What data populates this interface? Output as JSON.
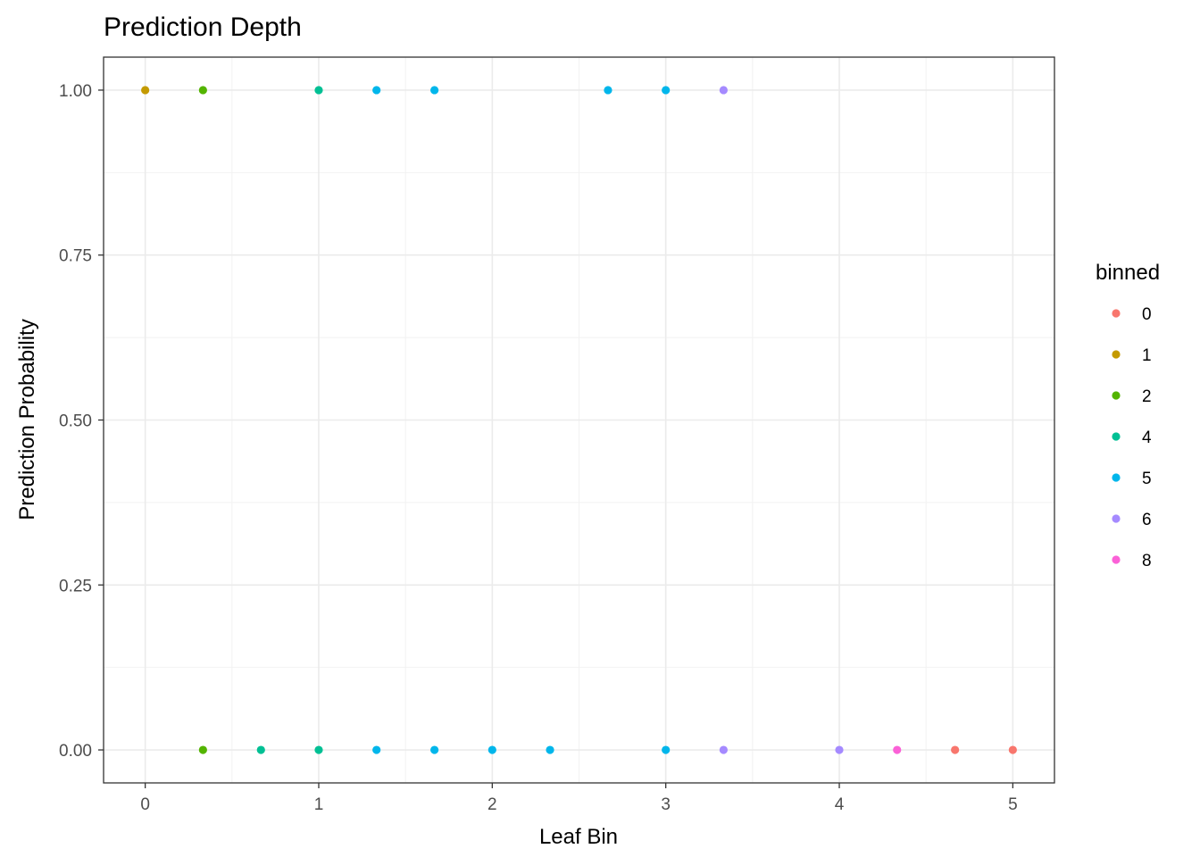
{
  "chart_data": {
    "type": "scatter",
    "title": "Prediction Depth",
    "xlabel": "Leaf Bin",
    "ylabel": "Prediction Probability",
    "xlim": [
      -0.24,
      5.24
    ],
    "ylim": [
      -0.05,
      1.05
    ],
    "x_ticks": [
      0,
      1,
      2,
      3,
      4,
      5
    ],
    "x_tick_labels": [
      "0",
      "1",
      "2",
      "3",
      "4",
      "5"
    ],
    "y_ticks": [
      0,
      0.25,
      0.5,
      0.75,
      1.0
    ],
    "y_tick_labels": [
      "0.00",
      "0.25",
      "0.50",
      "0.75",
      "1.00"
    ],
    "grid": true,
    "legend": {
      "title": "binned",
      "position": "right",
      "entries": [
        {
          "label": "0",
          "color": "#F8766D"
        },
        {
          "label": "1",
          "color": "#C49A00"
        },
        {
          "label": "2",
          "color": "#53B400"
        },
        {
          "label": "4",
          "color": "#00C094"
        },
        {
          "label": "5",
          "color": "#00B6EB"
        },
        {
          "label": "6",
          "color": "#A58AFF"
        },
        {
          "label": "8",
          "color": "#FB61D7"
        }
      ]
    },
    "series": [
      {
        "name": "0",
        "color": "#F8766D",
        "points": [
          [
            4.667,
            0
          ],
          [
            5.0,
            0
          ]
        ]
      },
      {
        "name": "1",
        "color": "#C49A00",
        "points": [
          [
            0.0,
            1
          ]
        ]
      },
      {
        "name": "2",
        "color": "#53B400",
        "points": [
          [
            0.333,
            1
          ],
          [
            0.333,
            0
          ]
        ]
      },
      {
        "name": "4",
        "color": "#00C094",
        "points": [
          [
            1.0,
            1
          ],
          [
            0.667,
            0
          ],
          [
            1.0,
            0
          ]
        ]
      },
      {
        "name": "5",
        "color": "#00B6EB",
        "points": [
          [
            1.333,
            1
          ],
          [
            1.667,
            1
          ],
          [
            2.667,
            1
          ],
          [
            3.0,
            1
          ],
          [
            1.333,
            0
          ],
          [
            1.667,
            0
          ],
          [
            2.0,
            0
          ],
          [
            2.333,
            0
          ],
          [
            3.0,
            0
          ]
        ]
      },
      {
        "name": "6",
        "color": "#A58AFF",
        "points": [
          [
            3.333,
            1
          ],
          [
            3.333,
            0
          ],
          [
            4.0,
            0
          ]
        ]
      },
      {
        "name": "8",
        "color": "#FB61D7",
        "points": [
          [
            4.333,
            0
          ]
        ]
      }
    ]
  }
}
